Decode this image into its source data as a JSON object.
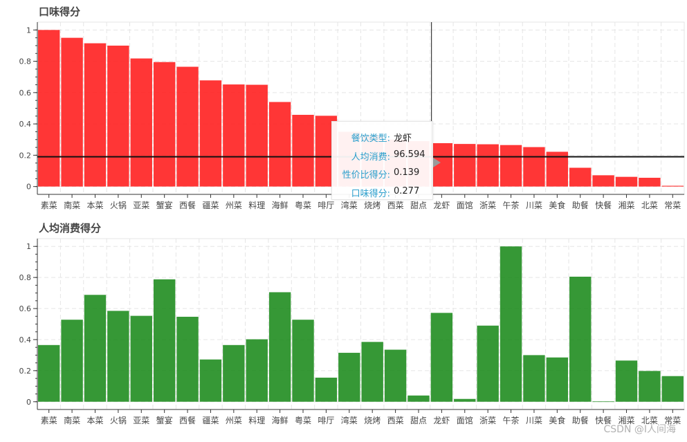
{
  "chart_data": [
    {
      "type": "bar",
      "title": "口味得分",
      "categories": [
        "素菜",
        "南菜",
        "本菜",
        "火锅",
        "亚菜",
        "蟹宴",
        "西餐",
        "疆菜",
        "州菜",
        "料理",
        "海鲜",
        "粤菜",
        "啡厅",
        "湾菜",
        "烧烤",
        "西菜",
        "甜点",
        "龙虾",
        "面馆",
        "浙菜",
        "午茶",
        "川菜",
        "美食",
        "助餐",
        "快餐",
        "湘菜",
        "北菜",
        "常菜"
      ],
      "values": [
        1.0,
        0.95,
        0.915,
        0.9,
        0.818,
        0.795,
        0.765,
        0.678,
        0.652,
        0.65,
        0.54,
        0.458,
        0.452,
        0.35,
        0.33,
        0.3,
        0.29,
        0.277,
        0.272,
        0.27,
        0.265,
        0.252,
        0.222,
        0.12,
        0.072,
        0.062,
        0.056,
        0.005
      ],
      "color": "#ff1a1a",
      "ylim": [
        -0.05,
        1.05
      ],
      "yticks": [
        "0",
        "0.2",
        "0.4",
        "0.6",
        "0.8",
        "1"
      ],
      "grid": true
    },
    {
      "type": "bar",
      "title": "人均消费得分",
      "categories": [
        "素菜",
        "南菜",
        "本菜",
        "火锅",
        "亚菜",
        "蟹宴",
        "西餐",
        "疆菜",
        "州菜",
        "料理",
        "海鲜",
        "粤菜",
        "啡厅",
        "湾菜",
        "烧烤",
        "西菜",
        "甜点",
        "龙虾",
        "面馆",
        "浙菜",
        "午茶",
        "川菜",
        "美食",
        "助餐",
        "快餐",
        "湘菜",
        "北菜",
        "常菜"
      ],
      "values": [
        0.365,
        0.528,
        0.688,
        0.585,
        0.553,
        0.788,
        0.547,
        0.272,
        0.365,
        0.402,
        0.705,
        0.528,
        0.155,
        0.315,
        0.385,
        0.335,
        0.04,
        0.572,
        0.018,
        0.49,
        1.0,
        0.3,
        0.285,
        0.805,
        0.002,
        0.265,
        0.198,
        0.165
      ],
      "color": "#1a8a1a",
      "ylim": [
        -0.05,
        1.05
      ],
      "yticks": [
        "0",
        "0.2",
        "0.4",
        "0.6",
        "0.8",
        "1"
      ],
      "grid": true
    }
  ],
  "hover": {
    "category": "龙虾",
    "crosshair_value": 0.19,
    "rows": [
      {
        "label": "餐饮类型:",
        "value": "龙虾"
      },
      {
        "label": "人均消费:",
        "value": "96.594"
      },
      {
        "label": "性价比得分:",
        "value": "0.139"
      },
      {
        "label": "口味得分:",
        "value": "0.277"
      }
    ]
  },
  "watermark": "CSDN @I人间海"
}
